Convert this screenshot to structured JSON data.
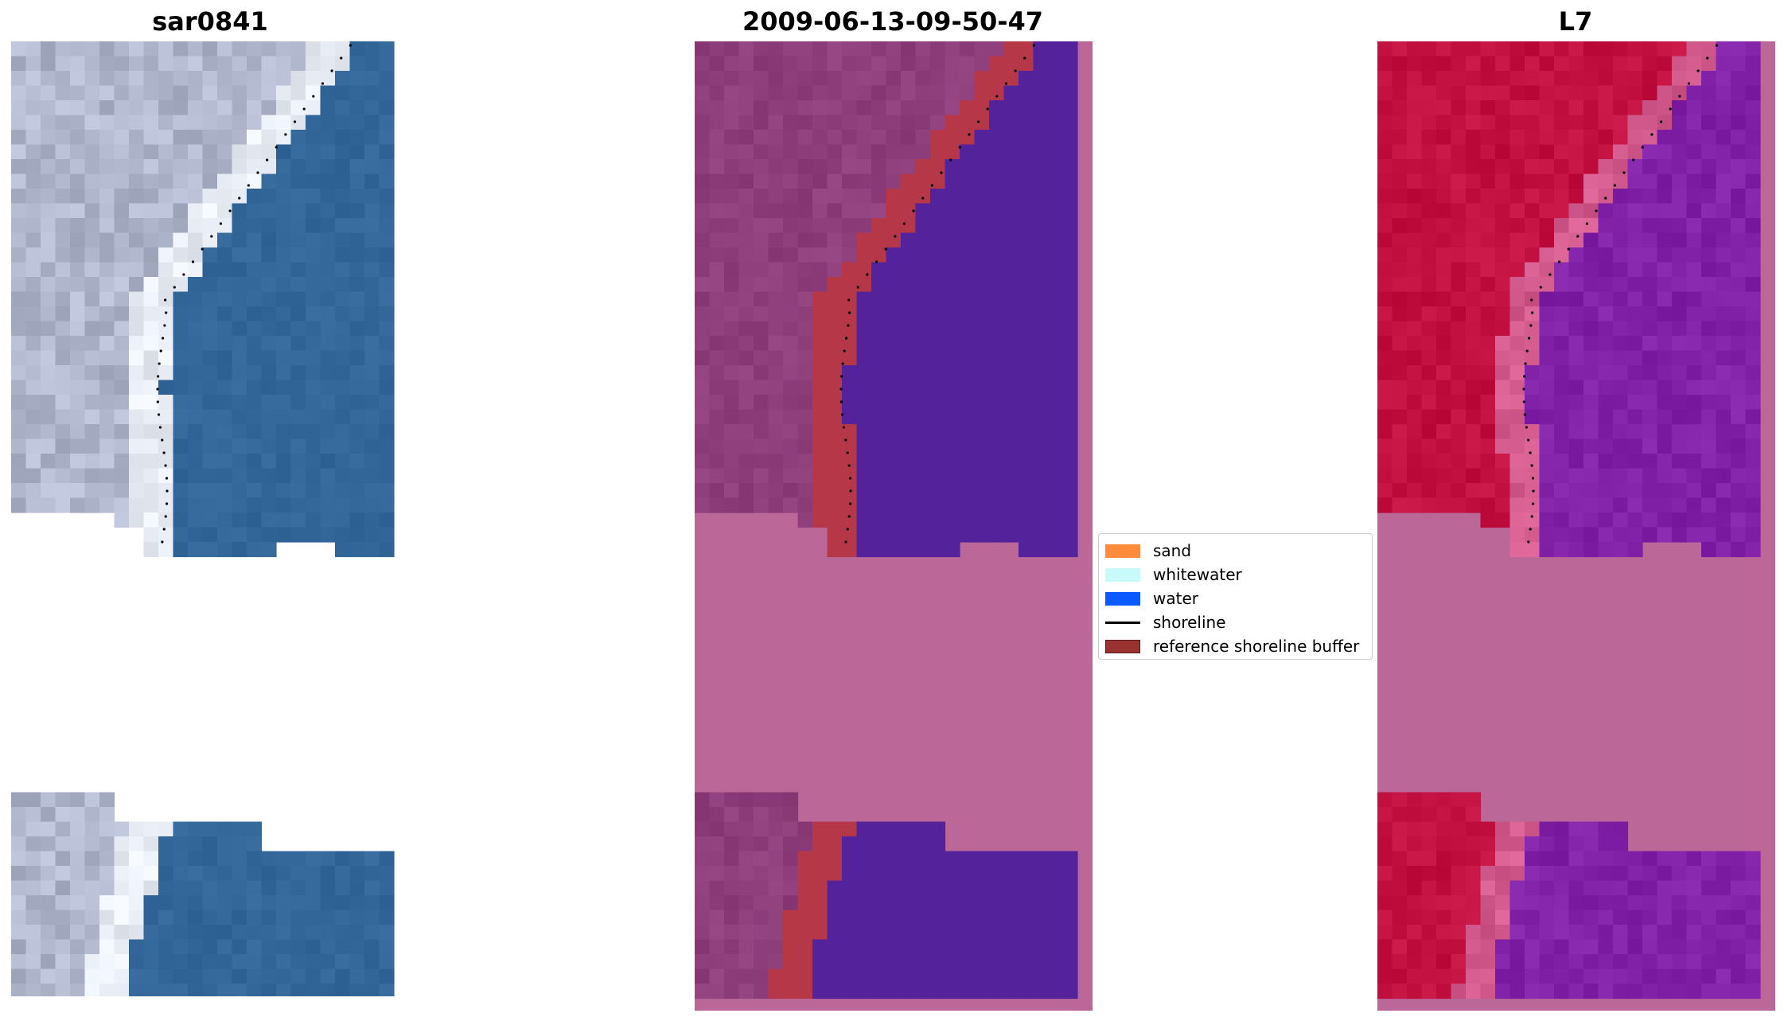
{
  "panels": [
    {
      "title": "sar0841",
      "kind": "rgb"
    },
    {
      "title": "2009-06-13-09-50-47",
      "kind": "classified"
    },
    {
      "title": "L7",
      "kind": "ndwi"
    }
  ],
  "legend": {
    "items": [
      {
        "label": "sand",
        "color": "#ff8c3c",
        "type": "patch"
      },
      {
        "label": "whitewater",
        "color": "#c8fafa",
        "type": "patch"
      },
      {
        "label": "water",
        "color": "#0a5aff",
        "type": "patch"
      },
      {
        "label": "shoreline",
        "color": "#000000",
        "type": "line"
      },
      {
        "label": "reference shoreline buffer",
        "color": "#9b3232",
        "type": "patch"
      }
    ]
  },
  "colors": {
    "land_rgb": "#b0b6cc",
    "surf_rgb": "#e8ecf4",
    "water_rgb": "#33679a",
    "land_class": "#8e3e7a",
    "buffer_class": "#b63848",
    "water_class": "#54229a",
    "nodata_mask": "#bb6798",
    "land_ndwi": "#c21040",
    "water_ndwi": "#8021a8",
    "shoreline_dots": "#000000"
  }
}
